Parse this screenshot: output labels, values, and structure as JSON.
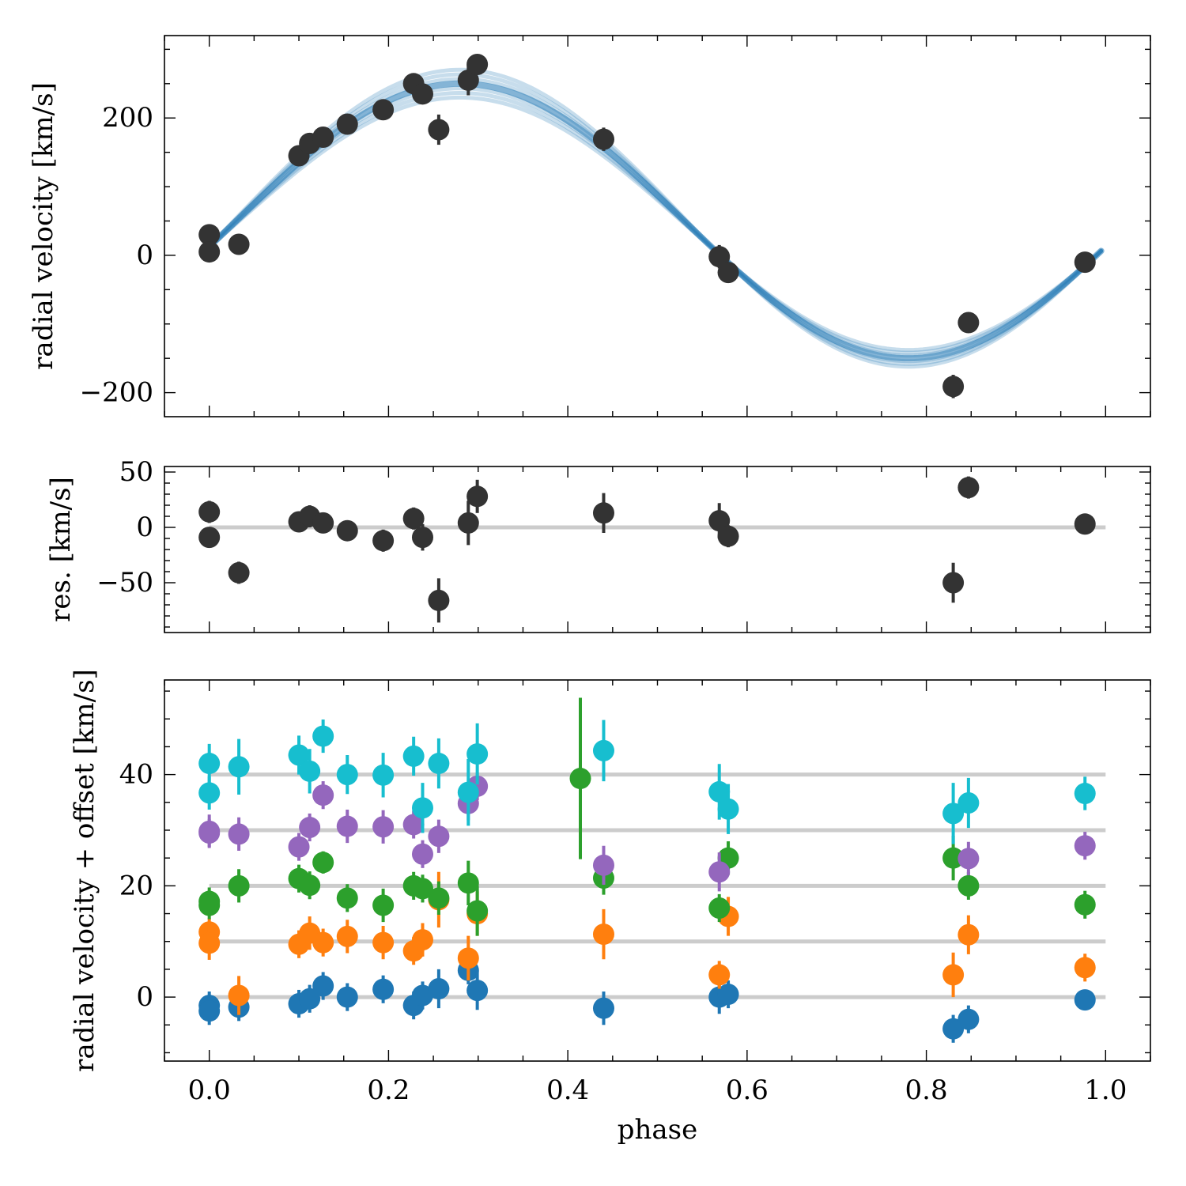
{
  "chart_data": [
    {
      "type": "scatter",
      "xlabel": "",
      "ylabel": "radial velocity  [km/s]",
      "xlim": [
        -0.05,
        1.05
      ],
      "ylim": [
        -235,
        320
      ],
      "xticks": [
        0.0,
        0.2,
        0.4,
        0.6,
        0.8,
        1.0
      ],
      "yticks": [
        -200,
        0,
        200
      ],
      "ytick_labels": [
        "−200",
        "0",
        "200"
      ],
      "model": {
        "type": "line-band",
        "color": "#1f77b4",
        "phase_range": [
          0.0,
          0.995
        ],
        "offset": 50,
        "amplitude": 200,
        "peak_phase": 0.28,
        "spread": 9
      },
      "series": [
        {
          "color": "#333333",
          "points": [
            {
              "x": 0.0,
              "y": 30,
              "err": 8
            },
            {
              "x": 0.0,
              "y": 5,
              "err": 8
            },
            {
              "x": 0.033,
              "y": 16,
              "err": 8
            },
            {
              "x": 0.1,
              "y": 145,
              "err": 8
            },
            {
              "x": 0.112,
              "y": 163,
              "err": 8
            },
            {
              "x": 0.127,
              "y": 172,
              "err": 8
            },
            {
              "x": 0.154,
              "y": 191,
              "err": 8
            },
            {
              "x": 0.194,
              "y": 212,
              "err": 8
            },
            {
              "x": 0.228,
              "y": 250,
              "err": 8
            },
            {
              "x": 0.238,
              "y": 235,
              "err": 8
            },
            {
              "x": 0.256,
              "y": 183,
              "err": 22
            },
            {
              "x": 0.289,
              "y": 255,
              "err": 22
            },
            {
              "x": 0.299,
              "y": 278,
              "err": 12
            },
            {
              "x": 0.44,
              "y": 169,
              "err": 17
            },
            {
              "x": 0.569,
              "y": -2,
              "err": 17
            },
            {
              "x": 0.579,
              "y": -25,
              "err": 8
            },
            {
              "x": 0.83,
              "y": -191,
              "err": 17
            },
            {
              "x": 0.847,
              "y": -98,
              "err": 8
            },
            {
              "x": 0.977,
              "y": -10,
              "err": 8
            }
          ]
        }
      ]
    },
    {
      "type": "scatter",
      "xlabel": "",
      "ylabel": "res. [km/s]",
      "xlim": [
        -0.05,
        1.05
      ],
      "ylim": [
        -95,
        55
      ],
      "xticks": [
        0.0,
        0.2,
        0.4,
        0.6,
        0.8,
        1.0
      ],
      "yticks": [
        -50,
        0,
        50
      ],
      "ytick_labels": [
        "−50",
        "0",
        "50"
      ],
      "reference_lines": [
        0
      ],
      "series": [
        {
          "color": "#333333",
          "points": [
            {
              "x": 0.0,
              "y": 14,
              "err": 10
            },
            {
              "x": 0.0,
              "y": -9,
              "err": 8
            },
            {
              "x": 0.033,
              "y": -41,
              "err": 10
            },
            {
              "x": 0.1,
              "y": 5,
              "err": 8
            },
            {
              "x": 0.112,
              "y": 10,
              "err": 10
            },
            {
              "x": 0.127,
              "y": 4,
              "err": 8
            },
            {
              "x": 0.154,
              "y": -3,
              "err": 8
            },
            {
              "x": 0.194,
              "y": -12,
              "err": 10
            },
            {
              "x": 0.228,
              "y": 8,
              "err": 10
            },
            {
              "x": 0.238,
              "y": -9,
              "err": 12
            },
            {
              "x": 0.256,
              "y": -66,
              "err": 20
            },
            {
              "x": 0.289,
              "y": 4,
              "err": 20
            },
            {
              "x": 0.299,
              "y": 28,
              "err": 15
            },
            {
              "x": 0.44,
              "y": 13,
              "err": 18
            },
            {
              "x": 0.569,
              "y": 6,
              "err": 16
            },
            {
              "x": 0.579,
              "y": -8,
              "err": 10
            },
            {
              "x": 0.83,
              "y": -50,
              "err": 18
            },
            {
              "x": 0.847,
              "y": 36,
              "err": 10
            },
            {
              "x": 0.977,
              "y": 3,
              "err": 4
            }
          ]
        }
      ]
    },
    {
      "type": "scatter",
      "xlabel": "phase",
      "ylabel": "radial velocity + offset [km/s]",
      "xlim": [
        -0.05,
        1.05
      ],
      "ylim": [
        -11.5,
        57
      ],
      "xticks": [
        0.0,
        0.2,
        0.4,
        0.6,
        0.8,
        1.0
      ],
      "xtick_labels": [
        "0.0",
        "0.2",
        "0.4",
        "0.6",
        "0.8",
        "1.0"
      ],
      "yticks": [
        0,
        20,
        40
      ],
      "ytick_labels": [
        "0",
        "20",
        "40"
      ],
      "reference_lines": [
        0,
        10,
        20,
        30,
        40
      ],
      "series": [
        {
          "color": "#1f77b4",
          "points": [
            {
              "x": 0.0,
              "y": -1.5,
              "err": 2.5
            },
            {
              "x": 0.0,
              "y": -2.5,
              "err": 2.5
            },
            {
              "x": 0.033,
              "y": -1.8,
              "err": 2.5
            },
            {
              "x": 0.1,
              "y": -1.2,
              "err": 2.5
            },
            {
              "x": 0.112,
              "y": -0.3,
              "err": 2.5
            },
            {
              "x": 0.127,
              "y": 2.0,
              "err": 2.5
            },
            {
              "x": 0.154,
              "y": 0.0,
              "err": 2.5
            },
            {
              "x": 0.194,
              "y": 1.4,
              "err": 2.5
            },
            {
              "x": 0.228,
              "y": -1.5,
              "err": 2.5
            },
            {
              "x": 0.238,
              "y": 0.3,
              "err": 2.5
            },
            {
              "x": 0.256,
              "y": 1.5,
              "err": 3.5
            },
            {
              "x": 0.289,
              "y": 4.8,
              "err": 2.5
            },
            {
              "x": 0.299,
              "y": 1.2,
              "err": 3.5
            },
            {
              "x": 0.44,
              "y": -2.0,
              "err": 3.0
            },
            {
              "x": 0.569,
              "y": 0.0,
              "err": 3.0
            },
            {
              "x": 0.579,
              "y": 0.5,
              "err": 2.5
            },
            {
              "x": 0.83,
              "y": -5.7,
              "err": 2.5
            },
            {
              "x": 0.847,
              "y": -4.0,
              "err": 2.5
            },
            {
              "x": 0.977,
              "y": -0.5,
              "err": 1.5
            }
          ]
        },
        {
          "color": "#ff7f0e",
          "points": [
            {
              "x": 0.0,
              "y": 11.7,
              "err": 2.5
            },
            {
              "x": 0.0,
              "y": 9.7,
              "err": 3.0
            },
            {
              "x": 0.033,
              "y": 0.3,
              "err": 3.5
            },
            {
              "x": 0.1,
              "y": 9.5,
              "err": 2.5
            },
            {
              "x": 0.112,
              "y": 11.5,
              "err": 3.0
            },
            {
              "x": 0.127,
              "y": 9.8,
              "err": 2.5
            },
            {
              "x": 0.154,
              "y": 10.9,
              "err": 3.0
            },
            {
              "x": 0.194,
              "y": 9.8,
              "err": 3.0
            },
            {
              "x": 0.228,
              "y": 8.3,
              "err": 2.5
            },
            {
              "x": 0.238,
              "y": 10.3,
              "err": 3.0
            },
            {
              "x": 0.256,
              "y": 17.5,
              "err": 5.0
            },
            {
              "x": 0.289,
              "y": 7.0,
              "err": 4.0
            },
            {
              "x": 0.299,
              "y": 15.0,
              "err": 4.0
            },
            {
              "x": 0.44,
              "y": 11.3,
              "err": 4.5
            },
            {
              "x": 0.569,
              "y": 4.0,
              "err": 2.5
            },
            {
              "x": 0.579,
              "y": 14.5,
              "err": 3.5
            },
            {
              "x": 0.83,
              "y": 4.0,
              "err": 4.0
            },
            {
              "x": 0.847,
              "y": 11.2,
              "err": 3.5
            },
            {
              "x": 0.977,
              "y": 5.3,
              "err": 2.5
            }
          ]
        },
        {
          "color": "#2ca02c",
          "points": [
            {
              "x": 0.0,
              "y": 17.2,
              "err": 2.5
            },
            {
              "x": 0.0,
              "y": 16.5,
              "err": 2.5
            },
            {
              "x": 0.033,
              "y": 20.0,
              "err": 3.0
            },
            {
              "x": 0.1,
              "y": 21.3,
              "err": 2.5
            },
            {
              "x": 0.112,
              "y": 20.1,
              "err": 2.5
            },
            {
              "x": 0.127,
              "y": 24.2,
              "err": 2.0
            },
            {
              "x": 0.154,
              "y": 17.8,
              "err": 2.5
            },
            {
              "x": 0.194,
              "y": 16.5,
              "err": 3.0
            },
            {
              "x": 0.228,
              "y": 20.0,
              "err": 2.5
            },
            {
              "x": 0.238,
              "y": 19.5,
              "err": 2.5
            },
            {
              "x": 0.256,
              "y": 17.8,
              "err": 3.0
            },
            {
              "x": 0.289,
              "y": 20.5,
              "err": 4.0
            },
            {
              "x": 0.299,
              "y": 15.5,
              "err": 4.5
            },
            {
              "x": 0.414,
              "y": 39.3,
              "err": 14.5
            },
            {
              "x": 0.44,
              "y": 21.4,
              "err": 3.0
            },
            {
              "x": 0.569,
              "y": 16.0,
              "err": 2.5
            },
            {
              "x": 0.579,
              "y": 25.0,
              "err": 3.0
            },
            {
              "x": 0.83,
              "y": 25.0,
              "err": 4.0
            },
            {
              "x": 0.847,
              "y": 20.0,
              "err": 2.5
            },
            {
              "x": 0.977,
              "y": 16.6,
              "err": 2.5
            }
          ]
        },
        {
          "color": "#9467bd",
          "points": [
            {
              "x": 0.0,
              "y": 29.8,
              "err": 3.0
            },
            {
              "x": 0.0,
              "y": 29.5,
              "err": 2.5
            },
            {
              "x": 0.033,
              "y": 29.3,
              "err": 3.0
            },
            {
              "x": 0.1,
              "y": 27.0,
              "err": 2.5
            },
            {
              "x": 0.112,
              "y": 30.5,
              "err": 2.5
            },
            {
              "x": 0.127,
              "y": 36.3,
              "err": 2.5
            },
            {
              "x": 0.154,
              "y": 30.7,
              "err": 3.0
            },
            {
              "x": 0.194,
              "y": 30.6,
              "err": 3.0
            },
            {
              "x": 0.228,
              "y": 31.0,
              "err": 2.5
            },
            {
              "x": 0.238,
              "y": 25.7,
              "err": 2.5
            },
            {
              "x": 0.256,
              "y": 28.9,
              "err": 3.0
            },
            {
              "x": 0.289,
              "y": 34.8,
              "err": 3.0
            },
            {
              "x": 0.299,
              "y": 37.9,
              "err": 2.5
            },
            {
              "x": 0.44,
              "y": 23.7,
              "err": 3.5
            },
            {
              "x": 0.569,
              "y": 22.5,
              "err": 3.5
            },
            {
              "x": 0.847,
              "y": 24.9,
              "err": 3.0
            },
            {
              "x": 0.977,
              "y": 27.2,
              "err": 2.5
            }
          ]
        },
        {
          "color": "#17becf",
          "points": [
            {
              "x": 0.0,
              "y": 42.0,
              "err": 3.5
            },
            {
              "x": 0.0,
              "y": 36.7,
              "err": 3.0
            },
            {
              "x": 0.033,
              "y": 41.4,
              "err": 5.0
            },
            {
              "x": 0.1,
              "y": 43.5,
              "err": 3.5
            },
            {
              "x": 0.112,
              "y": 40.6,
              "err": 4.0
            },
            {
              "x": 0.127,
              "y": 46.9,
              "err": 3.0
            },
            {
              "x": 0.154,
              "y": 40.0,
              "err": 3.5
            },
            {
              "x": 0.194,
              "y": 39.9,
              "err": 4.0
            },
            {
              "x": 0.228,
              "y": 43.3,
              "err": 3.5
            },
            {
              "x": 0.238,
              "y": 34.0,
              "err": 4.5
            },
            {
              "x": 0.256,
              "y": 42.0,
              "err": 4.5
            },
            {
              "x": 0.289,
              "y": 36.8,
              "err": 6.0
            },
            {
              "x": 0.299,
              "y": 43.7,
              "err": 5.5
            },
            {
              "x": 0.44,
              "y": 44.3,
              "err": 5.5
            },
            {
              "x": 0.569,
              "y": 36.9,
              "err": 5.0
            },
            {
              "x": 0.579,
              "y": 33.8,
              "err": 4.5
            },
            {
              "x": 0.83,
              "y": 33.0,
              "err": 5.5
            },
            {
              "x": 0.847,
              "y": 34.9,
              "err": 4.5
            },
            {
              "x": 0.977,
              "y": 36.6,
              "err": 3.0
            }
          ]
        }
      ]
    }
  ]
}
